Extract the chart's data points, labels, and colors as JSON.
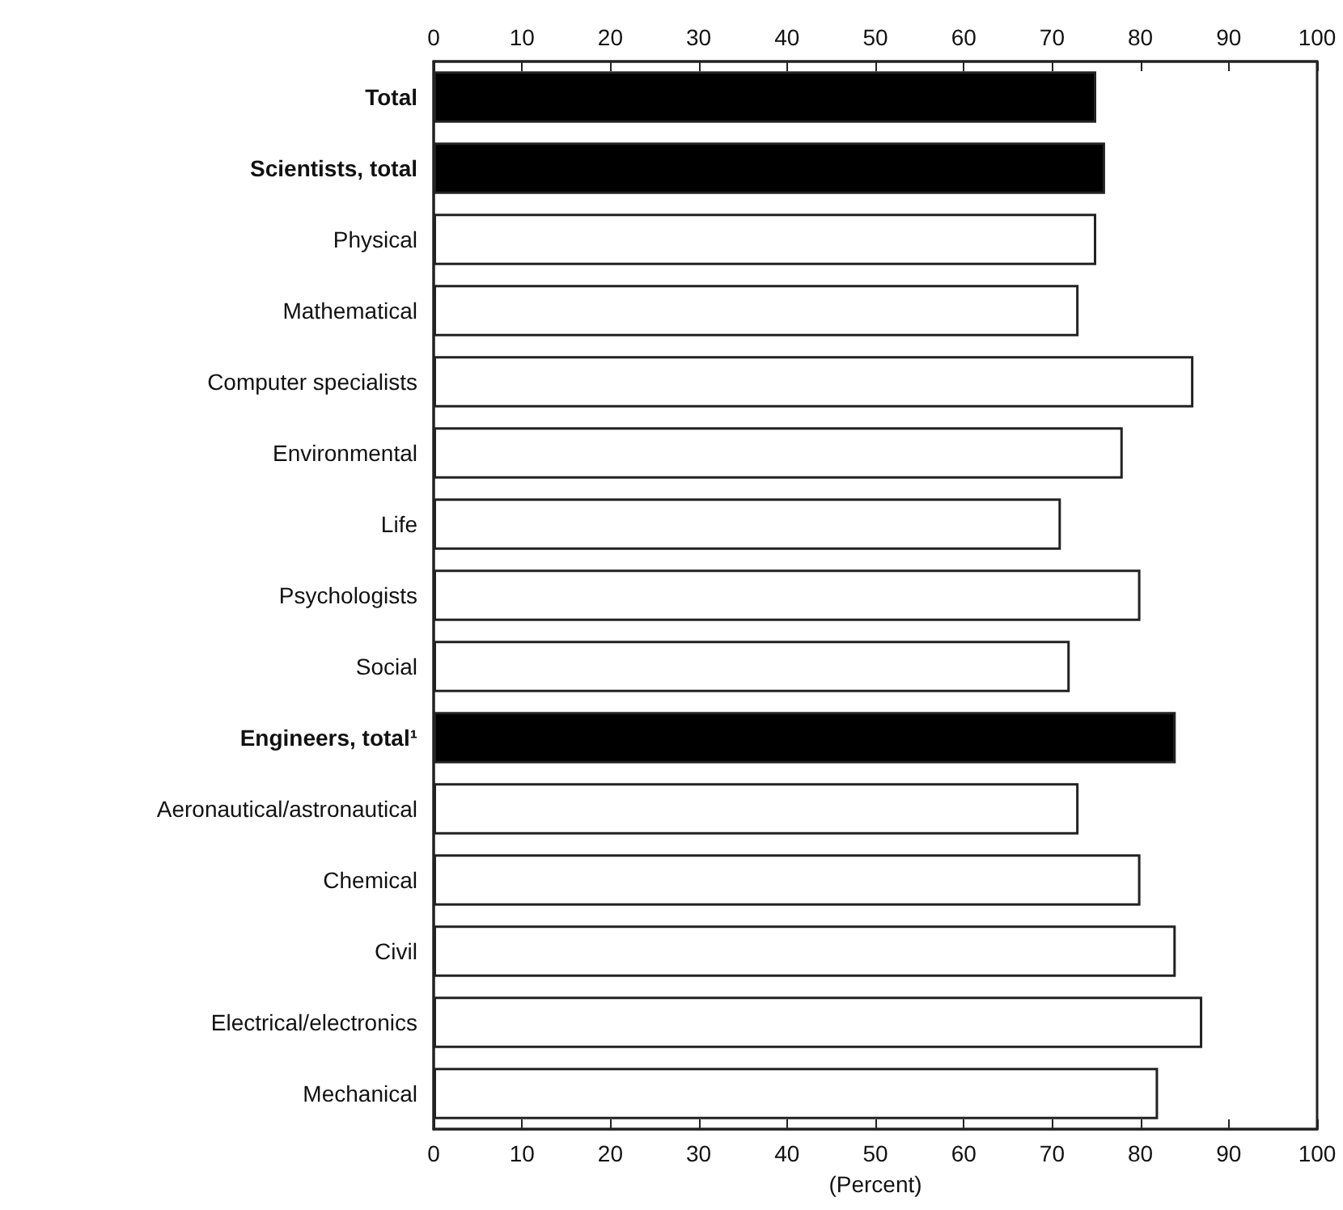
{
  "chart_data": {
    "type": "bar",
    "orientation": "horizontal",
    "xlabel": "(Percent)",
    "categories": [
      "Total",
      "Scientists, total",
      "Physical",
      "Mathematical",
      "Computer specialists",
      "Environmental",
      "Life",
      "Psychologists",
      "Social",
      "Engineers, total¹",
      "Aeronautical/astronautical",
      "Chemical",
      "Civil",
      "Electrical/electronics",
      "Mechanical"
    ],
    "values": [
      75,
      76,
      75,
      73,
      86,
      78,
      71,
      80,
      72,
      84,
      73,
      80,
      84,
      87,
      82
    ],
    "colors": [
      "#000000",
      "#000000",
      "#ffffff",
      "#ffffff",
      "#ffffff",
      "#ffffff",
      "#ffffff",
      "#ffffff",
      "#ffffff",
      "#000000",
      "#ffffff",
      "#ffffff",
      "#ffffff",
      "#ffffff",
      "#ffffff"
    ],
    "xlim": [
      0,
      100
    ],
    "xticks": [
      0,
      10,
      20,
      30,
      40,
      50,
      60,
      70,
      80,
      90,
      100
    ],
    "x2lim": [
      0,
      100
    ],
    "x2ticks": [
      0,
      10,
      20,
      30,
      40,
      50,
      60,
      70,
      80,
      90,
      100
    ],
    "grid": false
  }
}
